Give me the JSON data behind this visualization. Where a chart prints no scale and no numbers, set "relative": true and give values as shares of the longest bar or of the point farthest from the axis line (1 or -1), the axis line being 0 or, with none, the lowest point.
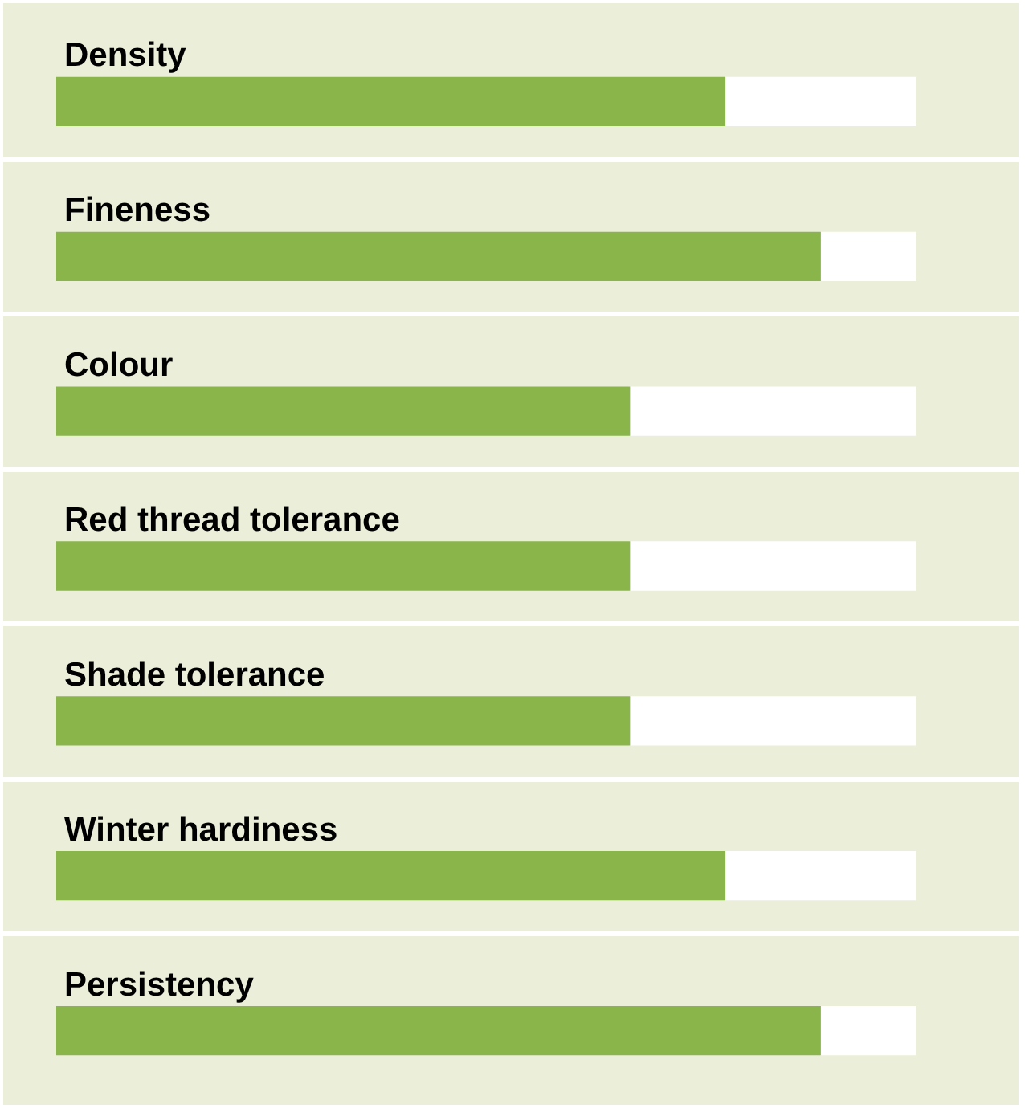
{
  "chart_data": {
    "type": "bar",
    "orientation": "horizontal",
    "stacked": true,
    "relative": true,
    "legend": false,
    "categories": [
      "Density",
      "Fineness",
      "Colour",
      "Red thread tolerance",
      "Shade tolerance",
      "Winter hardiness",
      "Persistency"
    ],
    "series": [
      {
        "color": "#8ab54b",
        "values": [
          0.778,
          0.889,
          0.667,
          0.667,
          0.667,
          0.778,
          0.889
        ]
      },
      {
        "color": "#ffffff",
        "values": [
          0.222,
          0.111,
          0.333,
          0.333,
          0.333,
          0.222,
          0.111
        ]
      }
    ]
  }
}
